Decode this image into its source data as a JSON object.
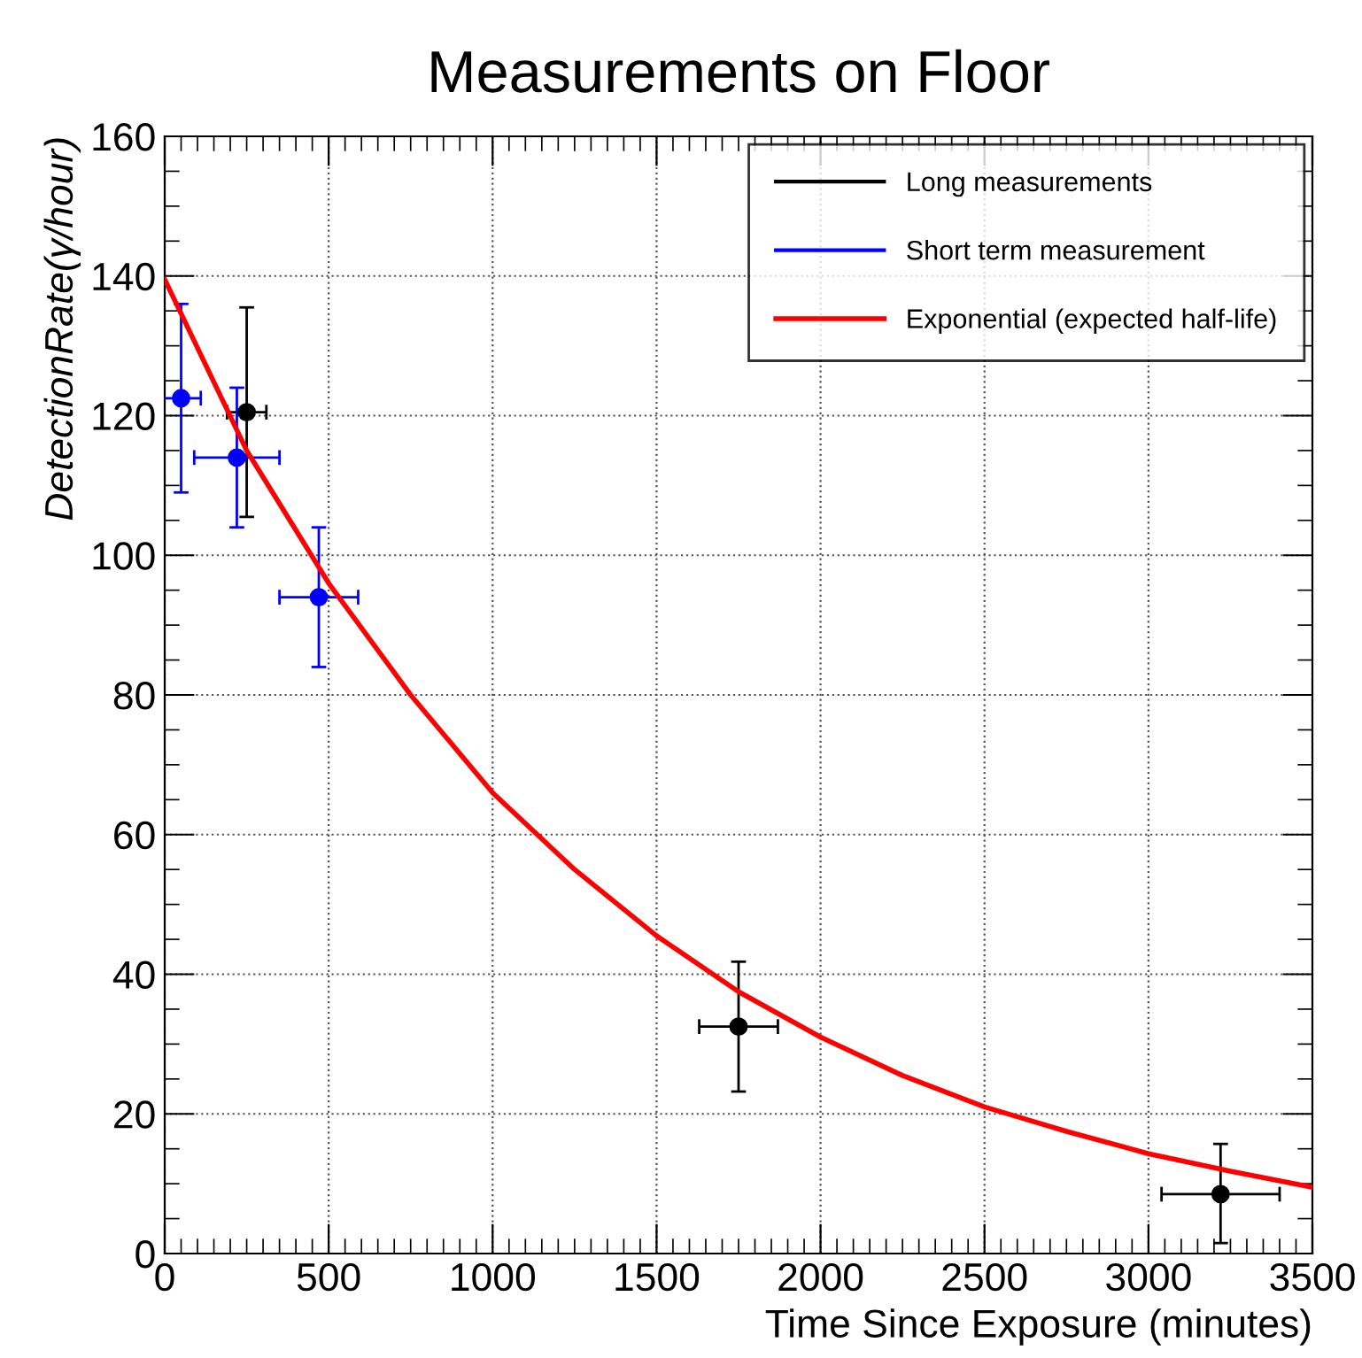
{
  "chart_data": {
    "type": "scatter",
    "title": "Measurements on Floor",
    "xlabel": "Time Since Exposure (minutes)",
    "ylabel": "DetectionRate(γ/hour)",
    "xlim": [
      0,
      3500
    ],
    "xticks": [
      0,
      500,
      1000,
      1500,
      2000,
      2500,
      3000,
      3500
    ],
    "ylim": [
      0,
      160
    ],
    "yticks": [
      0,
      20,
      40,
      60,
      80,
      100,
      120,
      140,
      160
    ],
    "grid": true,
    "legend": "top right",
    "marker": "circle",
    "series": [
      {
        "name": "Long measurements",
        "type": "scatter",
        "color": "#000000",
        "x": [
          250,
          1750,
          3220
        ],
        "values": [
          120.5,
          32.5,
          8.5
        ],
        "errors": [
          [
            105.5,
            135.5
          ],
          [
            23.2,
            41.8
          ],
          [
            1.5,
            15.7
          ]
        ],
        "xerrors": [
          60,
          120,
          180
        ]
      },
      {
        "name": "Short term measurement",
        "type": "scatter",
        "color": "#0000ff",
        "x": [
          50,
          220,
          470
        ],
        "values": [
          122.5,
          114,
          94
        ],
        "errors": [
          [
            109,
            136
          ],
          [
            104,
            124
          ],
          [
            84,
            104
          ]
        ],
        "xerrors": [
          60,
          130,
          120
        ]
      },
      {
        "name": "Exponential (expected half-life)",
        "type": "line",
        "color": "#ff0000",
        "marker": "none",
        "line_style": "solid",
        "x": [
          0,
          250,
          500,
          750,
          1000,
          1250,
          1500,
          1750,
          2000,
          2250,
          2500,
          2750,
          3000,
          3250,
          3500
        ],
        "values": [
          139.5,
          115,
          96,
          80,
          66,
          55,
          45.5,
          37.5,
          31,
          25.5,
          21,
          17.5,
          14.3,
          11.8,
          9.5
        ]
      }
    ]
  }
}
